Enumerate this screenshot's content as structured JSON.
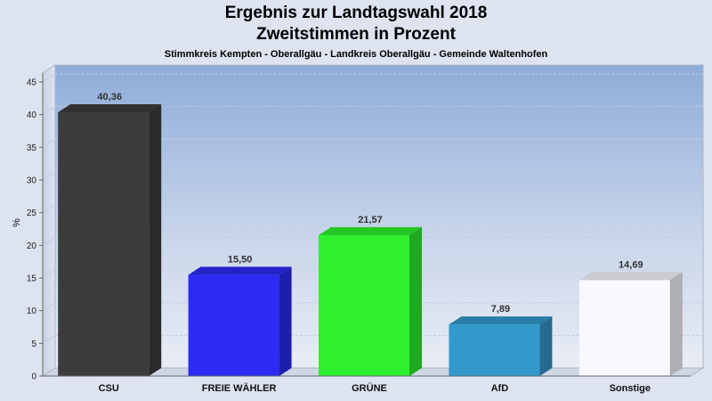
{
  "chart_data": {
    "type": "bar",
    "title": "Ergebnis zur Landtagswahl 2018",
    "subtitle": "Zweitstimmen in Prozent",
    "subtitle2": "Stimmkreis Kempten - Oberallgäu - Landkreis Oberallgäu - Gemeinde Waltenhofen",
    "xlabel": "",
    "ylabel": "%",
    "ylim": [
      0,
      45
    ],
    "yticks": [
      0,
      5,
      10,
      15,
      20,
      25,
      30,
      35,
      40,
      45
    ],
    "categories": [
      "CSU",
      "FREIE WÄHLER",
      "GRÜNE",
      "AfD",
      "Sonstige"
    ],
    "values": [
      40.36,
      15.5,
      21.57,
      7.89,
      14.69
    ],
    "value_labels": [
      "40,36",
      "15,50",
      "21,57",
      "7,89",
      "14,69"
    ],
    "colors": [
      "#3c3c3c",
      "#2b2bf5",
      "#2ef02e",
      "#3399cc",
      "#f8f8ff"
    ],
    "grid": true,
    "legend": "none"
  }
}
